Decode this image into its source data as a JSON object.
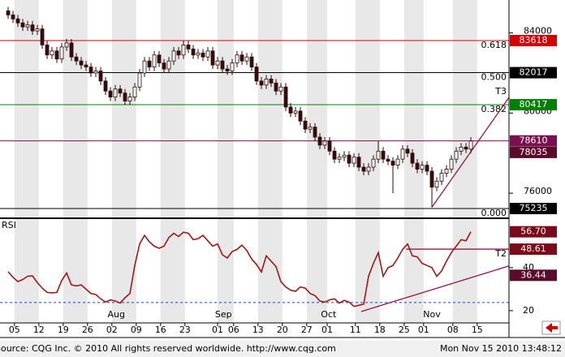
{
  "chart_data": [
    {
      "type": "candlestick",
      "open": [
        85100,
        84900,
        84700,
        84500,
        84300,
        84400,
        84100,
        84200,
        83400,
        82900,
        83100,
        82700,
        83300,
        83500,
        82800,
        82600,
        82400,
        82300,
        82000,
        82100,
        81600,
        81100,
        80800,
        81200,
        81000,
        80600,
        80800,
        81300,
        82000,
        82600,
        82300,
        82900,
        82500,
        82200,
        82600,
        83100,
        82900,
        83400,
        83200,
        82900,
        83000,
        82800,
        83100,
        82400,
        82600,
        82200,
        82100,
        82500,
        82900,
        82600,
        82800,
        82300,
        81600,
        81400,
        81700,
        81500,
        81100,
        81300,
        80300,
        80000,
        80100,
        79600,
        79200,
        79300,
        78800,
        78400,
        78600,
        78100,
        77700,
        77800,
        77900,
        77500,
        77800,
        77300,
        77100,
        77300,
        77700,
        78100,
        77700,
        77600,
        77400,
        77700,
        78200,
        78000,
        77500,
        77200,
        77400,
        77100,
        76300,
        76600,
        77000,
        77200,
        77700,
        78100,
        78300,
        78200
      ],
      "high": [
        85300,
        85100,
        84900,
        84700,
        84600,
        84600,
        84400,
        84400,
        83600,
        83300,
        83300,
        83500,
        83700,
        83700,
        83000,
        82800,
        82600,
        82500,
        82300,
        82300,
        81800,
        81300,
        81400,
        81400,
        81200,
        81000,
        81500,
        82200,
        82800,
        82800,
        83100,
        83100,
        82700,
        82800,
        83300,
        83300,
        83600,
        83600,
        83400,
        83200,
        83200,
        83300,
        83300,
        82800,
        82800,
        82400,
        82700,
        83100,
        83100,
        83000,
        83000,
        82500,
        81800,
        81900,
        81900,
        81700,
        81500,
        81500,
        80500,
        80300,
        80300,
        79800,
        79500,
        79500,
        79000,
        78800,
        78800,
        78300,
        78000,
        78100,
        78100,
        78000,
        78000,
        77500,
        77500,
        77900,
        78600,
        78300,
        77900,
        77800,
        77900,
        78400,
        78400,
        78200,
        77700,
        77600,
        77600,
        77300,
        76800,
        77200,
        77400,
        77900,
        78300,
        78500,
        78500,
        78800
      ],
      "low": [
        84700,
        84500,
        84300,
        84100,
        84100,
        83900,
        83900,
        83200,
        82700,
        82700,
        82500,
        82500,
        83100,
        82600,
        82400,
        82200,
        82100,
        81800,
        81800,
        81400,
        80900,
        80600,
        80600,
        80800,
        80400,
        80400,
        80600,
        81100,
        81800,
        82100,
        82100,
        82300,
        82000,
        82000,
        82400,
        82700,
        82700,
        83000,
        82700,
        82700,
        82600,
        82600,
        82200,
        82200,
        82000,
        81900,
        81900,
        82300,
        82400,
        82400,
        82100,
        81400,
        81200,
        81200,
        81300,
        80900,
        80900,
        80100,
        79800,
        79800,
        79400,
        79000,
        79000,
        78600,
        78200,
        78200,
        77900,
        77500,
        77500,
        77600,
        77300,
        77300,
        77100,
        76900,
        76900,
        77100,
        77500,
        77500,
        77400,
        76000,
        77200,
        77500,
        77800,
        77300,
        77000,
        77000,
        76900,
        75300,
        76100,
        76400,
        76800,
        77000,
        77500,
        77900,
        78000,
        78000
      ],
      "close": [
        84900,
        84700,
        84500,
        84300,
        84400,
        84100,
        84200,
        83400,
        82900,
        83100,
        82700,
        83300,
        83500,
        82800,
        82600,
        82400,
        82300,
        82000,
        82100,
        81600,
        81100,
        80800,
        81200,
        81000,
        80600,
        80800,
        81300,
        82000,
        82600,
        82300,
        82900,
        82500,
        82200,
        82600,
        83100,
        82900,
        83400,
        83200,
        82900,
        83000,
        82800,
        83100,
        82400,
        82600,
        82200,
        82100,
        82500,
        82900,
        82600,
        82800,
        82300,
        81600,
        81400,
        81700,
        81500,
        81100,
        81300,
        80300,
        80000,
        80100,
        79600,
        79200,
        79300,
        78800,
        78400,
        78600,
        78100,
        77700,
        77800,
        77900,
        77500,
        77800,
        77300,
        77100,
        77300,
        77700,
        78100,
        77700,
        77600,
        77400,
        77700,
        78200,
        78000,
        77500,
        77200,
        77400,
        77100,
        76300,
        76600,
        77000,
        77200,
        77700,
        78100,
        78300,
        78200,
        78600
      ],
      "xlim": [
        -1.67,
        102.83
      ],
      "ylim": [
        74790,
        85644
      ],
      "yticks": [
        84000,
        80000,
        76000
      ],
      "levels": [
        {
          "value": 83618,
          "ratio": "0.618",
          "color": "#d40000"
        },
        {
          "value": 82017,
          "ratio": "0.500",
          "color": "#000000"
        },
        {
          "value": 80417,
          "ratio": "0.382",
          "color": "#008000"
        },
        {
          "value": 78610,
          "color": "#7a1050"
        },
        {
          "value": 75235,
          "ratio": "0.000",
          "color": "#000000"
        }
      ],
      "markers": [
        {
          "value": 78035,
          "color": "#5a0a2a"
        }
      ],
      "annotation": "T3",
      "trendline": {
        "start": [
          87,
          75300
        ],
        "end": [
          102.83,
          80780
        ],
        "color": "#8b1a4a"
      }
    },
    {
      "type": "line",
      "name": "RSI",
      "color": "#a01818",
      "values": [
        38.1,
        35.5,
        33.5,
        34.5,
        36,
        36.2,
        33,
        30.5,
        28.5,
        28.3,
        28.5,
        34,
        37.5,
        32,
        31.5,
        32,
        30,
        28,
        27.5,
        25.5,
        24,
        25,
        24.5,
        23.5,
        26,
        28,
        41,
        51,
        55,
        52,
        50,
        49,
        50,
        54,
        56,
        54.5,
        56.5,
        56,
        53,
        53.5,
        55,
        52.5,
        50,
        51,
        46,
        44.5,
        47.5,
        48.5,
        50.5,
        48,
        44,
        41.5,
        38,
        45.5,
        43,
        40.5,
        33.5,
        31,
        29.5,
        29,
        31,
        30.5,
        28,
        27,
        24.5,
        24,
        25,
        25.5,
        23.5,
        24.8,
        24,
        22,
        22.5,
        23,
        36,
        42,
        47,
        36,
        40,
        41,
        44.5,
        48.5,
        51,
        45.5,
        45,
        42,
        41,
        40,
        36,
        38.5,
        43,
        47,
        50,
        53,
        52.5,
        56.7
      ],
      "xlim": [
        -1.67,
        102.83
      ],
      "ylim": [
        14.3,
        62.6
      ],
      "yticks": [
        40,
        20
      ],
      "xticks": [
        {
          "value": 1.3,
          "label": "05"
        },
        {
          "value": 6.3,
          "label": "12"
        },
        {
          "value": 11.3,
          "label": "19"
        },
        {
          "value": 16.3,
          "label": "26"
        },
        {
          "value": 21.3,
          "label": "02"
        },
        {
          "value": 26.3,
          "label": "09"
        },
        {
          "value": 31.3,
          "label": "16"
        },
        {
          "value": 36.3,
          "label": "23"
        },
        {
          "value": 43,
          "label": "01"
        },
        {
          "value": 46.3,
          "label": "06"
        },
        {
          "value": 51.3,
          "label": "13"
        },
        {
          "value": 56.3,
          "label": "20"
        },
        {
          "value": 61.3,
          "label": "27"
        },
        {
          "value": 65.5,
          "label": "01"
        },
        {
          "value": 71.3,
          "label": "11"
        },
        {
          "value": 76.3,
          "label": "18"
        },
        {
          "value": 81.3,
          "label": "25"
        },
        {
          "value": 85.3,
          "label": "01"
        },
        {
          "value": 91.3,
          "label": "08"
        },
        {
          "value": 96.3,
          "label": "15"
        }
      ],
      "months": [
        {
          "value": 22.2,
          "label": "Aug"
        },
        {
          "value": 44.2,
          "label": "Sep"
        },
        {
          "value": 65.8,
          "label": "Oct"
        },
        {
          "value": 87,
          "label": "Nov"
        }
      ],
      "reference_line": 23.8,
      "markers": [
        {
          "value": 56.7,
          "label": "56.70",
          "color": "#7a0a1a"
        },
        {
          "value": 48.61,
          "label": "48.61",
          "color": "#7a0a1a"
        },
        {
          "value": 36.44,
          "label": "36.44",
          "color": "#5a0a2a"
        }
      ],
      "annotation": "T2",
      "trendlines": [
        {
          "start": [
            72.5,
            19.6
          ],
          "end": [
            102.83,
            40.8
          ]
        },
        {
          "start": [
            81.7,
            48.61
          ],
          "end": [
            102.83,
            48.61
          ]
        }
      ]
    }
  ],
  "footer": {
    "source": "Source: CQG Inc. © 2010 All rights reserved worldwide. http://www.cqg.com",
    "timestamp": "Mon Nov 15 2010 13:48:12"
  }
}
